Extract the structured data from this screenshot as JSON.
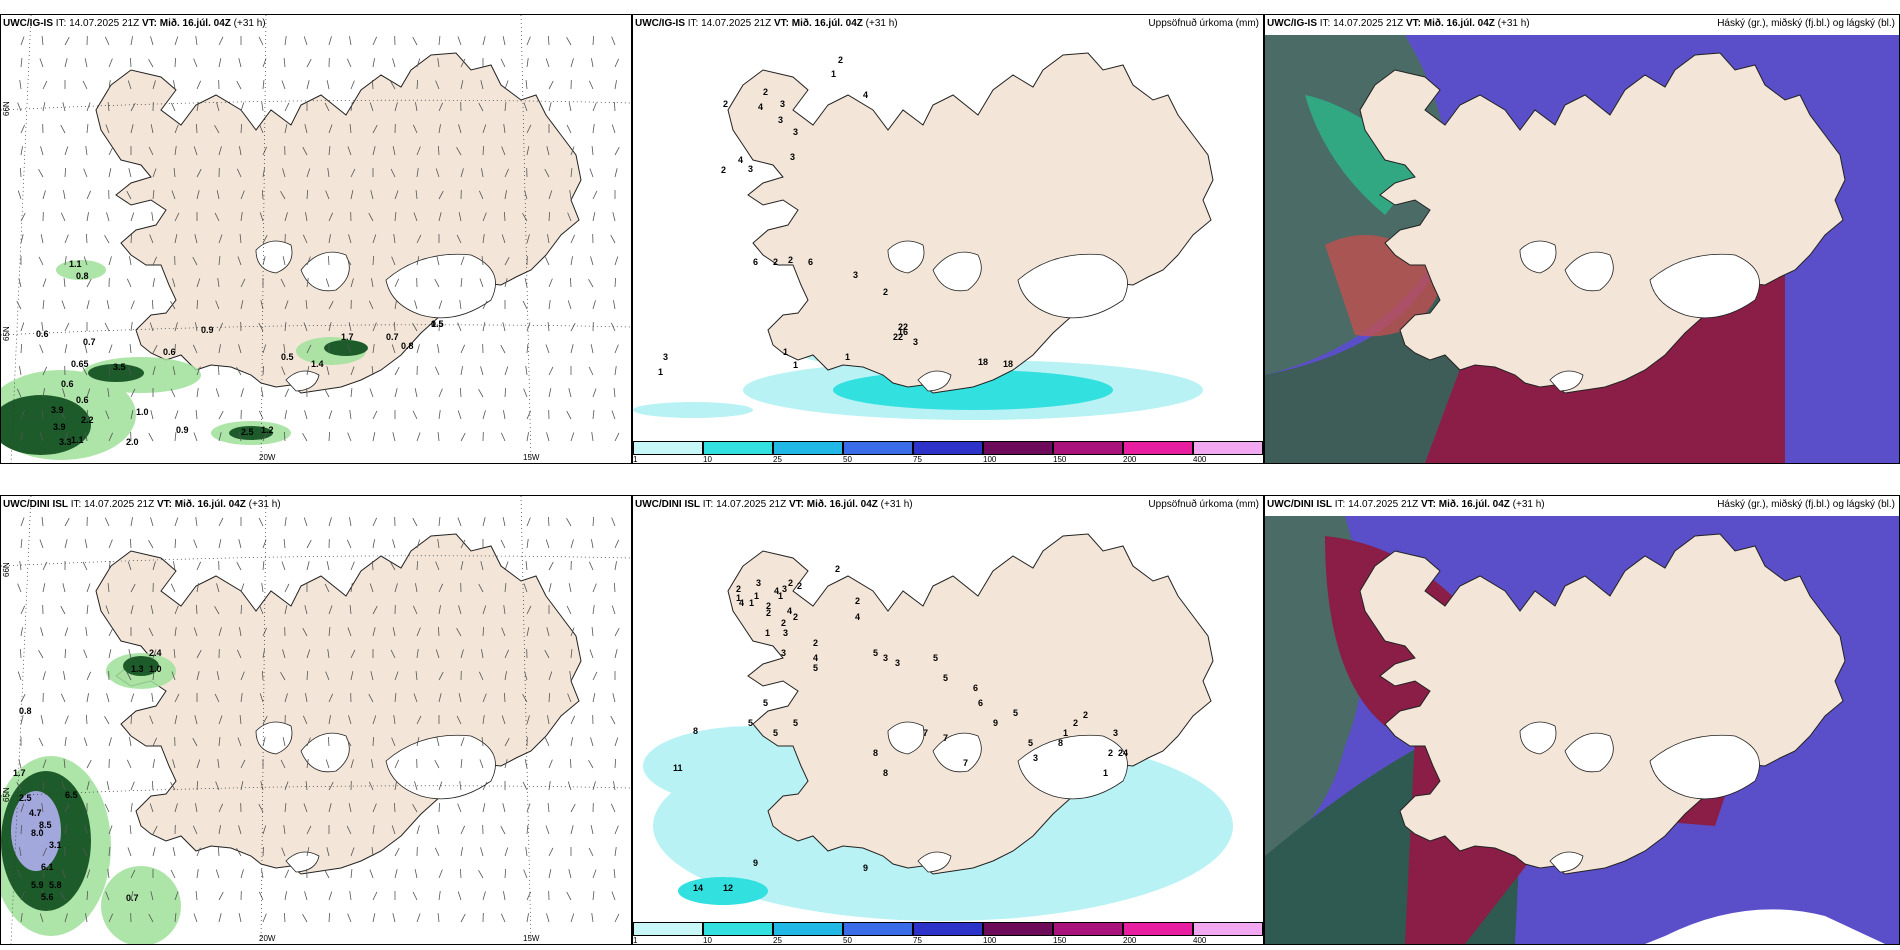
{
  "rows": [
    {
      "model": "UWC/IG-IS",
      "it_label": "IT:",
      "it_value": "14.07.2025 21Z",
      "vt_label": "VT:",
      "vt_value": "Mið. 16.júl. 04Z",
      "lead": "(+31 h)",
      "precip_title": "Uppsöfnuð úrkoma (mm)",
      "cloud_title": "Háský (gr.), miðský (fj.bl.) og lágský (bl.)",
      "wind_values": [
        "1.1",
        "0.8",
        "0.6",
        "0.7",
        "0.9",
        "0.6",
        "0.65",
        "0.5",
        "1.4",
        "0.7",
        "0.8",
        "0.6",
        "0.6",
        "3.9",
        "2.2",
        "3.9",
        "1.1",
        "1.0",
        "3.3",
        "2.0",
        "0.9",
        "2.5",
        "1.2",
        "1.7",
        "3.5",
        "0.5",
        "1.5"
      ],
      "precip_values": [
        "2",
        "4",
        "3",
        "3",
        "3",
        "2",
        "4",
        "2",
        "3",
        "3",
        "2",
        "4",
        "1",
        "6",
        "3",
        "6",
        "2",
        "2",
        "2",
        "1",
        "3",
        "22",
        "22",
        "16",
        "3",
        "1",
        "1",
        "1",
        "18",
        "18"
      ]
    },
    {
      "model": "UWC/DINI ISL",
      "it_label": "IT:",
      "it_value": "14.07.2025 21Z",
      "vt_label": "VT:",
      "vt_value": "Mið. 16.júl. 04Z",
      "lead": "(+31 h)",
      "precip_title": "Uppsöfnuð úrkoma (mm)",
      "cloud_title": "Háský (gr.), miðský (fj.bl.) og lágský (bl.)",
      "wind_values": [
        "2.4",
        "1.0",
        "1.3",
        "0.8",
        "1.7",
        "6.5",
        "2.5",
        "4.7",
        "8.5",
        "8.0",
        "3.1",
        "6.1",
        "5.9",
        "5.8",
        "5.6",
        "0.7"
      ],
      "precip_values": [
        "2",
        "3",
        "3",
        "2",
        "1",
        "4",
        "4",
        "1",
        "1",
        "2",
        "2",
        "3",
        "2",
        "2",
        "2",
        "2",
        "4",
        "4",
        "1",
        "2",
        "2",
        "1",
        "3",
        "4",
        "5",
        "5",
        "3",
        "3",
        "5",
        "5",
        "6",
        "6",
        "9",
        "5",
        "5",
        "3",
        "8",
        "1",
        "2",
        "2",
        "11",
        "8",
        "5",
        "5",
        "5",
        "5",
        "7",
        "7",
        "7",
        "8",
        "8",
        "14",
        "12",
        "9",
        "9",
        "3",
        "4",
        "1",
        "2",
        "2"
      ]
    }
  ],
  "axis": {
    "lat66": "66N",
    "lat65": "65N",
    "lon20": "20W",
    "lon15": "15W"
  },
  "legend": {
    "ticks": [
      "1",
      "10",
      "25",
      "50",
      "75",
      "100",
      "150",
      "200",
      "400"
    ],
    "colors": [
      "#c8f7f7",
      "#33e0e0",
      "#22b8e6",
      "#3a6ce8",
      "#2d32c8",
      "#6e0a5a",
      "#a8127a",
      "#e81ea0",
      "#f2a8f0"
    ]
  },
  "colors": {
    "land": "#f3e6d8",
    "precip_light": "#b8f2f4",
    "wind_green": "#2f7a3a",
    "cloud_high_gray": "#4b5d5c",
    "cloud_mid_red": "#8a1e47",
    "cloud_low_blue": "#5a4fc9"
  }
}
